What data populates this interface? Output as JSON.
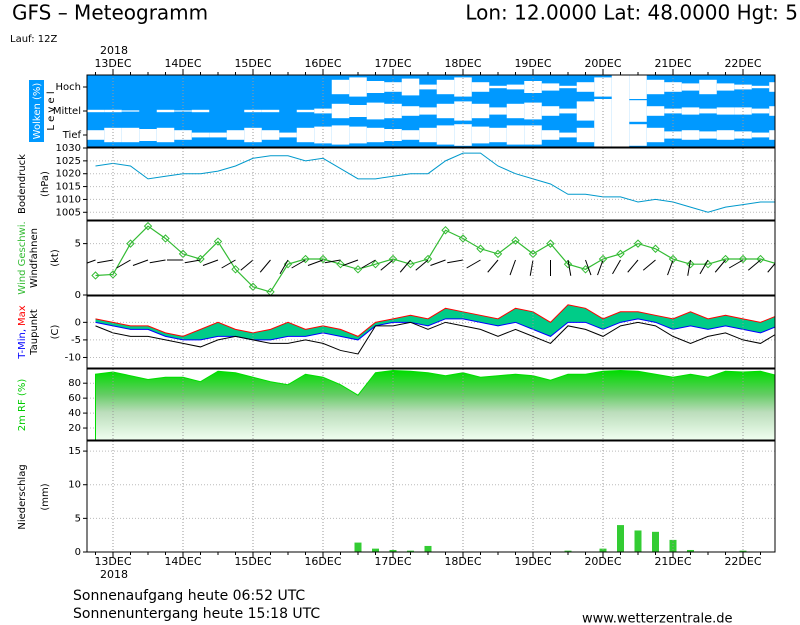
{
  "header": {
    "title": "GFS – Meteogramm",
    "location": "Lon: 12.0000 Lat: 48.0000 Hgt: 5",
    "run": "Lauf: 12Z"
  },
  "footer": {
    "sunrise": "Sonnenaufgang heute 06:52 UTC",
    "sunset": "Sonnenuntergang heute 15:18 UTC",
    "source": "www.wetterzentrale.de"
  },
  "chart_data": [
    {
      "type": "cloud",
      "ylabel": "Wolken (%)",
      "level_label": "L e v e l",
      "x_year": "2018",
      "categories": [
        null,
        "13DEC",
        null,
        null,
        null,
        "14DEC",
        null,
        null,
        null,
        "15DEC",
        null,
        null,
        null,
        "16DEC",
        null,
        null,
        null,
        "17DEC",
        null,
        null,
        null,
        "18DEC",
        null,
        null,
        null,
        "19DEC",
        null,
        null,
        null,
        "20DEC",
        null,
        null,
        null,
        "21DEC",
        null,
        null,
        null,
        "22DEC",
        null,
        null
      ],
      "background": "#0099ff",
      "color": "#ffffff",
      "series": [
        {
          "name": "Hoch",
          "values": [
            0,
            0,
            0,
            0,
            0,
            0,
            0,
            0,
            0,
            0,
            0,
            0,
            0,
            0,
            60,
            80,
            50,
            40,
            70,
            20,
            60,
            80,
            40,
            10,
            20,
            50,
            30,
            10,
            40,
            80,
            100,
            100,
            60,
            40,
            30,
            60,
            30,
            20,
            10,
            40
          ]
        },
        {
          "name": "Mittel",
          "values": [
            10,
            10,
            5,
            0,
            10,
            5,
            10,
            0,
            0,
            10,
            10,
            0,
            10,
            20,
            60,
            50,
            70,
            60,
            40,
            30,
            60,
            80,
            60,
            30,
            60,
            70,
            40,
            20,
            80,
            100,
            100,
            90,
            40,
            20,
            30,
            20,
            30,
            30,
            20,
            40
          ]
        },
        {
          "name": "Tief",
          "values": [
            40,
            60,
            60,
            50,
            60,
            40,
            20,
            20,
            40,
            60,
            40,
            20,
            60,
            70,
            80,
            70,
            60,
            50,
            40,
            60,
            80,
            90,
            70,
            60,
            80,
            80,
            40,
            20,
            60,
            100,
            100,
            90,
            60,
            30,
            40,
            30,
            40,
            30,
            20,
            40
          ]
        }
      ]
    },
    {
      "type": "line",
      "ylabel": "Bodendruck",
      "unit": "(hPa)",
      "color": "#0099cc",
      "values": [
        1023,
        1024,
        1023,
        1018,
        1019,
        1020,
        1020,
        1021,
        1023,
        1026,
        1027,
        1027,
        1025,
        1026,
        1022,
        1018,
        1018,
        1019,
        1020,
        1020,
        1025,
        1028,
        1028,
        1023,
        1020,
        1018,
        1016,
        1012,
        1012,
        1011,
        1011,
        1009,
        1010,
        1009,
        1007,
        1005,
        1007,
        1008,
        1009,
        1009
      ],
      "ylim": [
        1002,
        1030
      ],
      "yticks": [
        1005,
        1010,
        1015,
        1020,
        1025,
        1030
      ],
      "grid": true
    },
    {
      "type": "wind",
      "unit": "(kt)",
      "ylim": [
        0,
        7.2
      ],
      "yticks": [
        0,
        5
      ],
      "grid": true,
      "series": [
        {
          "name": "Wind Geschwi.",
          "color": "#33bb33",
          "values": [
            1.9,
            2.0,
            5.0,
            6.7,
            5.5,
            4.0,
            3.5,
            5.2,
            2.5,
            0.8,
            0.3,
            3.0,
            3.5,
            3.5,
            3.0,
            2.5,
            3.0,
            3.5,
            3.0,
            3.5,
            6.3,
            5.5,
            4.5,
            4.0,
            5.3,
            4.0,
            5.0,
            3.0,
            2.5,
            3.5,
            4.0,
            5.0,
            4.5,
            3.5,
            3.0,
            3.0,
            3.5,
            3.5,
            3.5,
            3.0
          ]
        },
        {
          "name": "Windfahnen",
          "color": "#000000",
          "values": [
            250,
            260,
            240,
            250,
            260,
            270,
            260,
            250,
            240,
            230,
            220,
            210,
            240,
            250,
            260,
            250,
            240,
            230,
            220,
            230,
            250,
            260,
            240,
            220,
            200,
            190,
            180,
            170,
            160,
            200,
            210,
            220,
            230,
            200,
            190,
            210,
            220,
            240,
            230,
            220
          ]
        }
      ]
    },
    {
      "type": "temperature",
      "unit": "(C)",
      "name_separator": ",",
      "fill": "#00cc88",
      "ylim": [
        -13,
        7.5
      ],
      "yticks": [
        0,
        -5,
        -10
      ],
      "grid": true,
      "series": [
        {
          "name": "T-Min",
          "color": "#0000ff",
          "values": [
            0,
            -1,
            -2,
            -2,
            -4,
            -5,
            -5,
            -4,
            -4,
            -5,
            -5,
            -4,
            -4,
            -3,
            -4,
            -5,
            -1,
            0,
            0,
            -1,
            1,
            1,
            0,
            -1,
            0,
            -2,
            -4,
            0,
            0,
            -2,
            0,
            1,
            0,
            -2,
            -1,
            -2,
            -1,
            -2,
            -3,
            -1
          ]
        },
        {
          "name": "Max",
          "color": "#ff0000",
          "values": [
            1,
            0,
            -1,
            -1,
            -3,
            -4,
            -2,
            0,
            -2,
            -3,
            -2,
            0,
            -2,
            -1,
            -2,
            -4,
            0,
            1,
            2,
            1,
            4,
            3,
            2,
            1,
            4,
            3,
            0,
            5,
            4,
            1,
            3,
            3,
            2,
            1,
            3,
            1,
            2,
            1,
            0,
            2
          ]
        },
        {
          "name": "Taupunkt",
          "color": "#000000",
          "values": [
            -1,
            -3,
            -4,
            -4,
            -5,
            -6,
            -7,
            -5,
            -4,
            -5,
            -6,
            -6,
            -5,
            -6,
            -8,
            -9,
            -1,
            -1,
            0,
            -2,
            0,
            -1,
            -2,
            -4,
            -2,
            -4,
            -6,
            -1,
            -2,
            -4,
            -1,
            0,
            -1,
            -4,
            -6,
            -4,
            -3,
            -5,
            -6,
            -3
          ]
        }
      ]
    },
    {
      "type": "area",
      "ylabel": "2m RF (%)",
      "color": "#00dd00",
      "values": [
        92,
        95,
        90,
        85,
        88,
        88,
        82,
        96,
        94,
        88,
        82,
        78,
        92,
        88,
        78,
        64,
        94,
        97,
        96,
        94,
        90,
        94,
        88,
        90,
        92,
        90,
        84,
        92,
        92,
        96,
        97,
        96,
        92,
        88,
        92,
        88,
        96,
        95,
        96,
        90
      ],
      "ylim": [
        4,
        99
      ],
      "yticks": [
        20,
        40,
        60,
        80
      ],
      "grid": true
    },
    {
      "type": "bar",
      "ylabel": "Niederschlag",
      "unit": "(mm)",
      "color": "#33cc33",
      "x_year": "2018",
      "categories": [
        null,
        "13DEC",
        null,
        null,
        null,
        "14DEC",
        null,
        null,
        null,
        "15DEC",
        null,
        null,
        null,
        "16DEC",
        null,
        null,
        null,
        "17DEC",
        null,
        null,
        null,
        "18DEC",
        null,
        null,
        null,
        "19DEC",
        null,
        null,
        null,
        "20DEC",
        null,
        null,
        null,
        "21DEC",
        null,
        null,
        null,
        "22DEC",
        null,
        null
      ],
      "values": [
        0,
        0,
        0,
        0,
        0,
        0,
        0,
        0,
        0,
        0,
        0,
        0,
        0,
        0,
        0,
        1.4,
        0.5,
        0.3,
        0.2,
        0.9,
        0,
        0,
        0,
        0,
        0,
        0,
        0,
        0.2,
        0,
        0.5,
        4.0,
        3.2,
        3.0,
        1.8,
        0.3,
        0,
        0,
        0.2,
        0,
        0
      ],
      "ylim": [
        0,
        16.5
      ],
      "yticks": [
        0,
        5,
        10,
        15
      ],
      "grid": true
    }
  ]
}
